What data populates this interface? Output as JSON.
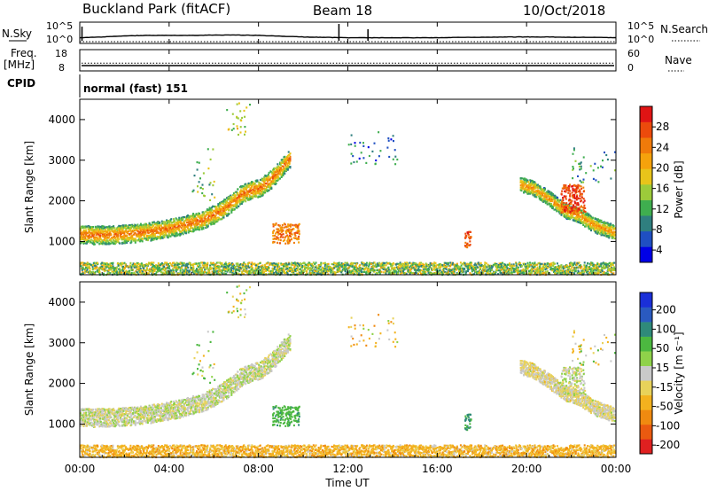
{
  "header": {
    "station": "Buckland Park (fitACF)",
    "beam": "Beam 18",
    "date": "10/Oct/2018"
  },
  "aux_panels": {
    "nsky_label": "N.Sky",
    "nsky_ticks": [
      "10^5",
      "10^0"
    ],
    "nsearch_label": "N.Search",
    "nsearch_ticks": [
      "10^5",
      "10^0"
    ],
    "freq_label_1": "Freq.",
    "freq_label_2": "[MHz]",
    "freq_ticks": [
      "18",
      "8"
    ],
    "nave_label": "Nave",
    "nave_ticks": [
      "60",
      "0"
    ],
    "cpid_label": "CPID",
    "cpid_value": "normal (fast) 151"
  },
  "x_axis": {
    "label": "Time UT",
    "ticks": [
      "00:00",
      "04:00",
      "08:00",
      "12:00",
      "16:00",
      "20:00",
      "00:00"
    ]
  },
  "panels": {
    "power": {
      "ylabel": "Slant Range [km]",
      "colorbar_label": "Power [dB]",
      "colorbar_ticks": [
        "28",
        "24",
        "20",
        "16",
        "12",
        "8",
        "4"
      ],
      "colors": [
        "#0000e6",
        "#1f4fc2",
        "#2f7f7f",
        "#3fae4f",
        "#9ccb3a",
        "#e8c41a",
        "#f5a20c",
        "#f07a0a",
        "#ec4a0c",
        "#e01414"
      ]
    },
    "velocity": {
      "ylabel": "Slant Range [km]",
      "colorbar_label": "Velocity [m s⁻¹]",
      "colorbar_ticks": [
        "200",
        "100",
        "50",
        "15",
        "-15",
        "-50",
        "-100",
        "-200"
      ],
      "colors": [
        "#1a2fd8",
        "#2a5ac0",
        "#2f8a7a",
        "#4cb840",
        "#8fd24a",
        "#c9c9c9",
        "#e8d25a",
        "#f3b21e",
        "#f08a10",
        "#ea5a10",
        "#e02020"
      ]
    }
  },
  "chart_data": {
    "type": "heatmap",
    "x_range_hours": [
      0,
      24
    ],
    "y_range_km": [
      180,
      4500
    ],
    "y_ticks": [
      1000,
      2000,
      3000,
      4000
    ],
    "x_ticks_hours": [
      0,
      4,
      8,
      12,
      16,
      20,
      24
    ],
    "features": [
      {
        "kind": "band",
        "t": [
          0,
          0.5,
          1.5,
          2.5,
          3.5,
          4.5,
          5.5,
          6.3,
          6.8,
          7.2,
          7.6,
          8.0,
          8.5,
          9.0,
          9.4
        ],
        "r": [
          1180,
          1150,
          1160,
          1200,
          1270,
          1380,
          1530,
          1750,
          1950,
          2150,
          2250,
          2300,
          2500,
          2800,
          3050
        ],
        "w": 320,
        "pw": 22,
        "vel": 0
      },
      {
        "kind": "band",
        "t": [
          19.7,
          20.3,
          21.0,
          21.7,
          22.3,
          23.0,
          24.0
        ],
        "r": [
          2400,
          2300,
          2050,
          1750,
          1650,
          1400,
          1200
        ],
        "w": 260,
        "pw": 20,
        "vel": -5
      },
      {
        "kind": "blob",
        "t": [
          8.6,
          9.8
        ],
        "r": [
          950,
          1450
        ],
        "pw": 22,
        "vel": 40
      },
      {
        "kind": "blob",
        "t": [
          17.2,
          17.5
        ],
        "r": [
          850,
          1250
        ],
        "pw": 25,
        "vel": 55
      },
      {
        "kind": "blob",
        "t": [
          21.5,
          22.6
        ],
        "r": [
          1700,
          2400
        ],
        "pw": 26,
        "vel": 0
      },
      {
        "kind": "cloud",
        "t": [
          6.3,
          7.7
        ],
        "r": [
          3600,
          4500
        ],
        "pw": 14,
        "vel": 10
      },
      {
        "kind": "cloud",
        "t": [
          12.0,
          14.2
        ],
        "r": [
          2900,
          3700
        ],
        "pw": 6,
        "vel": -30
      },
      {
        "kind": "cloud",
        "t": [
          5.0,
          6.0
        ],
        "r": [
          2000,
          3300
        ],
        "pw": 10,
        "vel": 20
      },
      {
        "kind": "cloud",
        "t": [
          22.0,
          24.0
        ],
        "r": [
          2400,
          3300
        ],
        "pw": 8,
        "vel": 0
      },
      {
        "kind": "ground",
        "t": [
          0,
          24
        ],
        "r": [
          180,
          480
        ],
        "pw": 12,
        "vel": -30
      }
    ],
    "nsky_trace_log": [
      1.0,
      1.2,
      1.5,
      1.6,
      1.6,
      1.6,
      1.7,
      1.7,
      1.6,
      1.4,
      1.2,
      1.1,
      1.0,
      1.0,
      1.0,
      1.0,
      1.0,
      1.1,
      1.1,
      1.2,
      1.2,
      1.2,
      1.1,
      1.1,
      1.0
    ],
    "freq_mhz": 10.5,
    "nave": 22
  }
}
